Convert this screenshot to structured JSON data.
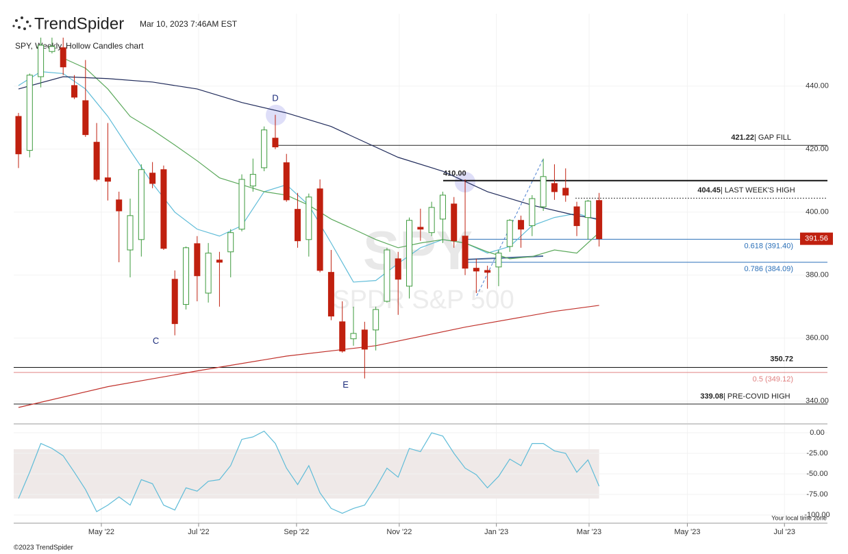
{
  "header": {
    "brand": "TrendSpider",
    "timestamp": "Mar 10, 2023 7:46AM EST"
  },
  "footer": {
    "copyright": "©2023 TrendSpider",
    "timezone": "Your local time zone"
  },
  "watermark": {
    "symbol": "SPY",
    "name": "SPDR S&P 500"
  },
  "chart_data": [
    {
      "type": "candlestick",
      "title": "SPY, Weekly, Hollow Candles chart",
      "up_color": "#3c9a3c",
      "down_color": "#c0200f",
      "x": [
        0,
        1,
        2,
        3,
        4,
        5,
        6,
        7,
        8,
        9,
        10,
        11,
        12,
        13,
        14,
        15,
        16,
        17,
        18,
        19,
        20,
        21,
        22,
        23,
        24,
        25,
        26,
        27,
        28,
        29,
        30,
        31,
        32,
        33,
        34,
        35,
        36,
        37,
        38,
        39,
        40,
        41,
        42,
        43,
        44,
        45,
        46,
        47,
        48,
        49,
        50,
        51,
        52
      ],
      "open": [
        430.4,
        419.6,
        443,
        451,
        452.2,
        440.2,
        435.4,
        422.2,
        410.9,
        403.9,
        388,
        391.3,
        412.4,
        413.5,
        378.7,
        370.7,
        390,
        374.3,
        384.8,
        387.4,
        394.6,
        408.3,
        414.1,
        423.5,
        415.7,
        400.9,
        391.3,
        407.4,
        380.9,
        365.2,
        359.8,
        362.6,
        362.6,
        371.7,
        385.2,
        376.5,
        395.2,
        393.5,
        397.8,
        402.6,
        392.4,
        382.2,
        381.5,
        382.6,
        389.1,
        397.4,
        395.7,
        401.7,
        409.1,
        407.6,
        401.7,
        398.3,
        403.7
      ],
      "high": [
        431.5,
        444,
        455.4,
        455.4,
        455.4,
        443.5,
        448.3,
        428.3,
        428.3,
        406.5,
        404.3,
        415.2,
        415.9,
        414.8,
        381.5,
        389.1,
        392.4,
        390.2,
        387.4,
        394.6,
        412,
        417,
        427.2,
        430.9,
        418.5,
        406.1,
        405.9,
        410.4,
        388,
        371.7,
        370,
        365.2,
        370,
        388.7,
        387.4,
        398.3,
        401.1,
        403.3,
        406.5,
        404.8,
        410.4,
        385.2,
        383,
        388,
        397.8,
        398.9,
        405.4,
        417,
        415.2,
        413.9,
        403.3,
        403.9,
        406.1
      ],
      "low": [
        414,
        417.4,
        439.6,
        450.4,
        443.5,
        435.9,
        423.9,
        409.8,
        403.7,
        384.1,
        379.3,
        385.9,
        407.6,
        388,
        360.9,
        369.1,
        371.7,
        371.3,
        370,
        379.3,
        393.9,
        406.5,
        413,
        420,
        403.3,
        388.7,
        385.9,
        380.9,
        365.7,
        355.4,
        357.6,
        347.2,
        356.1,
        371.3,
        367.4,
        372.6,
        390.9,
        392.4,
        390.2,
        388.7,
        380,
        374.3,
        375.7,
        376.5,
        387.4,
        388.7,
        392.4,
        400.4,
        403.9,
        403.3,
        392.4,
        391.3,
        389.1
      ],
      "close": [
        418.5,
        443.5,
        453,
        452.6,
        446.1,
        436.5,
        424.6,
        410.4,
        409.8,
        400.4,
        398.9,
        413.5,
        409.1,
        388.5,
        364.6,
        388.7,
        379.8,
        387,
        384.1,
        393.5,
        410.4,
        412,
        426.1,
        420.7,
        403.9,
        390.9,
        404.8,
        381.5,
        367,
        355.9,
        361.5,
        356.5,
        369.1,
        388,
        378.7,
        397.4,
        394.6,
        401.5,
        405.4,
        390.9,
        382.2,
        381.3,
        380.9,
        387,
        397.4,
        394.6,
        404.3,
        411.3,
        406.5,
        405.4,
        395.7,
        403.5,
        391.56
      ],
      "series": [
        {
          "color": "#5fbcd8",
          "x": [
            0,
            2,
            4,
            6,
            8,
            10,
            12,
            14,
            16,
            18,
            20,
            22,
            24,
            26,
            28,
            30,
            32,
            34,
            36,
            38,
            40,
            42,
            44,
            46,
            48,
            50,
            52
          ],
          "values": [
            440.2,
            444.6,
            444,
            439.1,
            430.4,
            419.6,
            409.1,
            400,
            394.6,
            392.4,
            395.7,
            406.5,
            408.7,
            402.2,
            390.2,
            377.8,
            378.3,
            383.7,
            388.7,
            391.3,
            390.2,
            387,
            389.1,
            395.7,
            398.3,
            399.6,
            397.4
          ]
        },
        {
          "color": "#5aa85a",
          "x": [
            4,
            6,
            8,
            10,
            12,
            14,
            16,
            18,
            20,
            22,
            24,
            26,
            28,
            30,
            32,
            34,
            36,
            38,
            40,
            42,
            44,
            46,
            48,
            50,
            52
          ],
          "values": [
            448.9,
            445.7,
            439.1,
            430.4,
            426.1,
            421.3,
            416.3,
            410.9,
            408.7,
            406.5,
            405.4,
            402.2,
            397.8,
            394.6,
            391.3,
            388.7,
            390.2,
            391.3,
            390.2,
            387.4,
            385.2,
            385.9,
            388,
            387,
            393.5
          ]
        },
        {
          "color": "#1f2a5a",
          "x": [
            0,
            4,
            8,
            12,
            16,
            20,
            24,
            28,
            30,
            34,
            38,
            42,
            46,
            50,
            52
          ],
          "values": [
            439.1,
            443,
            442.4,
            441.3,
            439.1,
            434.8,
            431.5,
            427.2,
            423.9,
            417.4,
            413,
            406.5,
            402.2,
            398.9,
            397.8
          ]
        },
        {
          "color": "#c0302a",
          "x": [
            0,
            8,
            16,
            24,
            32,
            40,
            48,
            52
          ],
          "values": [
            338,
            344.6,
            349.6,
            354.3,
            357.6,
            363.5,
            368.5,
            370.4
          ]
        }
      ],
      "levels": [
        {
          "value": 421.22,
          "label": "| GAP FILL",
          "color": "#222"
        },
        {
          "value": 410,
          "value_label": "410.00",
          "color": "#111"
        },
        {
          "value": 404.45,
          "label": "| LAST WEEK'S HIGH",
          "color": "#333"
        },
        {
          "value": 391.4,
          "label": "0.618 (391.40)",
          "color": "#2a6fb8"
        },
        {
          "value": 384.09,
          "label": "0.786 (384.09)",
          "color": "#2a6fb8"
        },
        {
          "value": 350.72,
          "color": "#111"
        },
        {
          "value": 349.12,
          "label": "0.5 (349.12)",
          "color": "#e08080"
        },
        {
          "value": 339.08,
          "label": "| PRE-COVID HIGH",
          "color": "#222"
        }
      ],
      "annotations": [
        {
          "text": "D",
          "x": 23,
          "y": 436
        },
        {
          "text": "C",
          "x": 12.3,
          "y": 359
        },
        {
          "text": "E",
          "x": 29.3,
          "y": 345
        }
      ],
      "xlim": [
        -0.43,
        72.45
      ],
      "xticks": [
        {
          "value": 7.42,
          "label": "May '22"
        },
        {
          "value": 16.13,
          "label": "Jul '22"
        },
        {
          "value": 24.9,
          "label": "Sep '22"
        },
        {
          "value": 34.1,
          "label": "Nov '22"
        },
        {
          "value": 42.8,
          "label": "Jan '23"
        },
        {
          "value": 51.1,
          "label": "Mar '23"
        },
        {
          "value": 59.9,
          "label": "May '23"
        },
        {
          "value": 68.6,
          "label": "Jul '23"
        }
      ],
      "ylim": [
        333,
        463
      ],
      "yticks": [
        {
          "value": 440,
          "label": "440.00"
        },
        {
          "value": 420,
          "label": "420.00"
        },
        {
          "value": 400,
          "label": "400.00"
        },
        {
          "value": 380,
          "label": "380.00"
        },
        {
          "value": 360,
          "label": "360.00"
        },
        {
          "value": 340,
          "label": "340.00"
        }
      ]
    },
    {
      "type": "line",
      "color": "#5fbcd8",
      "band": [
        -80,
        -20
      ],
      "band_color": "#efe9e8",
      "x": [
        0,
        1,
        2,
        3,
        4,
        5,
        6,
        7,
        8,
        9,
        10,
        11,
        12,
        13,
        14,
        15,
        16,
        17,
        18,
        19,
        20,
        21,
        22,
        23,
        24,
        25,
        26,
        27,
        28,
        29,
        30,
        31,
        32,
        33,
        34,
        35,
        36,
        37,
        38,
        39,
        40,
        41,
        42,
        43,
        44,
        45,
        46,
        47,
        48,
        49,
        50,
        51,
        52
      ],
      "values": [
        -80,
        -48,
        -13,
        -19,
        -28,
        -48,
        -69,
        -96,
        -88,
        -78,
        -88,
        -57,
        -62,
        -88,
        -94,
        -67,
        -71,
        -59,
        -57,
        -40,
        -8,
        -5,
        2,
        -13,
        -43,
        -63,
        -40,
        -73,
        -92,
        -98,
        -92,
        -88,
        -67,
        -43,
        -54,
        -19,
        -23,
        0,
        -4,
        -25,
        -43,
        -51,
        -67,
        -53,
        -32,
        -40,
        -13,
        -13,
        -22,
        -25,
        -48,
        -33,
        -65
      ],
      "ylim": [
        -110,
        10
      ],
      "yticks": [
        {
          "value": 0,
          "label": "0.00"
        },
        {
          "value": -25,
          "label": "-25.00"
        },
        {
          "value": -50,
          "label": "-50.00"
        },
        {
          "value": -75,
          "label": "-75.00"
        },
        {
          "value": -100,
          "label": "-100.00"
        }
      ]
    }
  ]
}
